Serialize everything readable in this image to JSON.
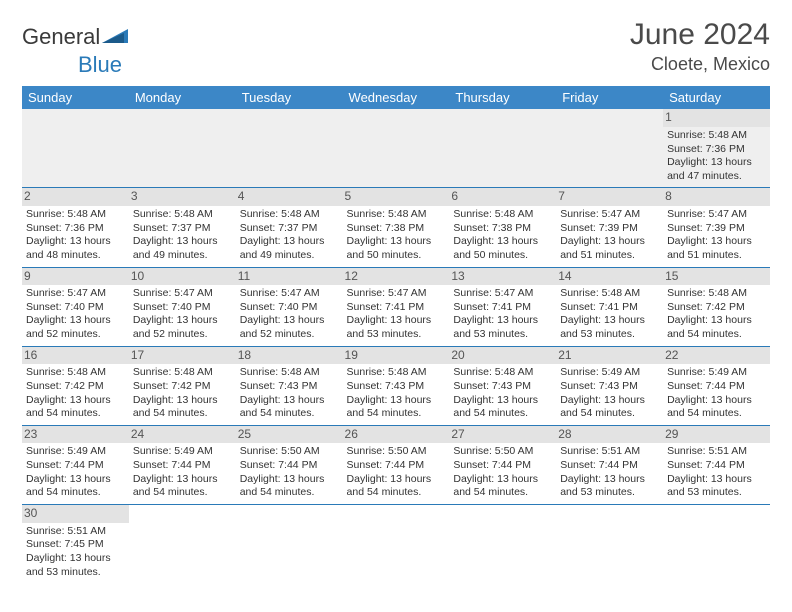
{
  "brand": {
    "part1": "General",
    "part2": "Blue"
  },
  "title": "June 2024",
  "location": "Cloete, Mexico",
  "header_bg": "#3c87c7",
  "days": [
    "Sunday",
    "Monday",
    "Tuesday",
    "Wednesday",
    "Thursday",
    "Friday",
    "Saturday"
  ],
  "weeks": [
    [
      null,
      null,
      null,
      null,
      null,
      null,
      {
        "n": "1",
        "sr": "5:48 AM",
        "ss": "7:36 PM",
        "dl": "13 hours and 47 minutes."
      }
    ],
    [
      {
        "n": "2",
        "sr": "5:48 AM",
        "ss": "7:36 PM",
        "dl": "13 hours and 48 minutes."
      },
      {
        "n": "3",
        "sr": "5:48 AM",
        "ss": "7:37 PM",
        "dl": "13 hours and 49 minutes."
      },
      {
        "n": "4",
        "sr": "5:48 AM",
        "ss": "7:37 PM",
        "dl": "13 hours and 49 minutes."
      },
      {
        "n": "5",
        "sr": "5:48 AM",
        "ss": "7:38 PM",
        "dl": "13 hours and 50 minutes."
      },
      {
        "n": "6",
        "sr": "5:48 AM",
        "ss": "7:38 PM",
        "dl": "13 hours and 50 minutes."
      },
      {
        "n": "7",
        "sr": "5:47 AM",
        "ss": "7:39 PM",
        "dl": "13 hours and 51 minutes."
      },
      {
        "n": "8",
        "sr": "5:47 AM",
        "ss": "7:39 PM",
        "dl": "13 hours and 51 minutes."
      }
    ],
    [
      {
        "n": "9",
        "sr": "5:47 AM",
        "ss": "7:40 PM",
        "dl": "13 hours and 52 minutes."
      },
      {
        "n": "10",
        "sr": "5:47 AM",
        "ss": "7:40 PM",
        "dl": "13 hours and 52 minutes."
      },
      {
        "n": "11",
        "sr": "5:47 AM",
        "ss": "7:40 PM",
        "dl": "13 hours and 52 minutes."
      },
      {
        "n": "12",
        "sr": "5:47 AM",
        "ss": "7:41 PM",
        "dl": "13 hours and 53 minutes."
      },
      {
        "n": "13",
        "sr": "5:47 AM",
        "ss": "7:41 PM",
        "dl": "13 hours and 53 minutes."
      },
      {
        "n": "14",
        "sr": "5:48 AM",
        "ss": "7:41 PM",
        "dl": "13 hours and 53 minutes."
      },
      {
        "n": "15",
        "sr": "5:48 AM",
        "ss": "7:42 PM",
        "dl": "13 hours and 54 minutes."
      }
    ],
    [
      {
        "n": "16",
        "sr": "5:48 AM",
        "ss": "7:42 PM",
        "dl": "13 hours and 54 minutes."
      },
      {
        "n": "17",
        "sr": "5:48 AM",
        "ss": "7:42 PM",
        "dl": "13 hours and 54 minutes."
      },
      {
        "n": "18",
        "sr": "5:48 AM",
        "ss": "7:43 PM",
        "dl": "13 hours and 54 minutes."
      },
      {
        "n": "19",
        "sr": "5:48 AM",
        "ss": "7:43 PM",
        "dl": "13 hours and 54 minutes."
      },
      {
        "n": "20",
        "sr": "5:48 AM",
        "ss": "7:43 PM",
        "dl": "13 hours and 54 minutes."
      },
      {
        "n": "21",
        "sr": "5:49 AM",
        "ss": "7:43 PM",
        "dl": "13 hours and 54 minutes."
      },
      {
        "n": "22",
        "sr": "5:49 AM",
        "ss": "7:44 PM",
        "dl": "13 hours and 54 minutes."
      }
    ],
    [
      {
        "n": "23",
        "sr": "5:49 AM",
        "ss": "7:44 PM",
        "dl": "13 hours and 54 minutes."
      },
      {
        "n": "24",
        "sr": "5:49 AM",
        "ss": "7:44 PM",
        "dl": "13 hours and 54 minutes."
      },
      {
        "n": "25",
        "sr": "5:50 AM",
        "ss": "7:44 PM",
        "dl": "13 hours and 54 minutes."
      },
      {
        "n": "26",
        "sr": "5:50 AM",
        "ss": "7:44 PM",
        "dl": "13 hours and 54 minutes."
      },
      {
        "n": "27",
        "sr": "5:50 AM",
        "ss": "7:44 PM",
        "dl": "13 hours and 54 minutes."
      },
      {
        "n": "28",
        "sr": "5:51 AM",
        "ss": "7:44 PM",
        "dl": "13 hours and 53 minutes."
      },
      {
        "n": "29",
        "sr": "5:51 AM",
        "ss": "7:44 PM",
        "dl": "13 hours and 53 minutes."
      }
    ],
    [
      {
        "n": "30",
        "sr": "5:51 AM",
        "ss": "7:45 PM",
        "dl": "13 hours and 53 minutes."
      },
      null,
      null,
      null,
      null,
      null,
      null
    ]
  ],
  "labels": {
    "sunrise": "Sunrise: ",
    "sunset": "Sunset: ",
    "daylight": "Daylight: "
  }
}
